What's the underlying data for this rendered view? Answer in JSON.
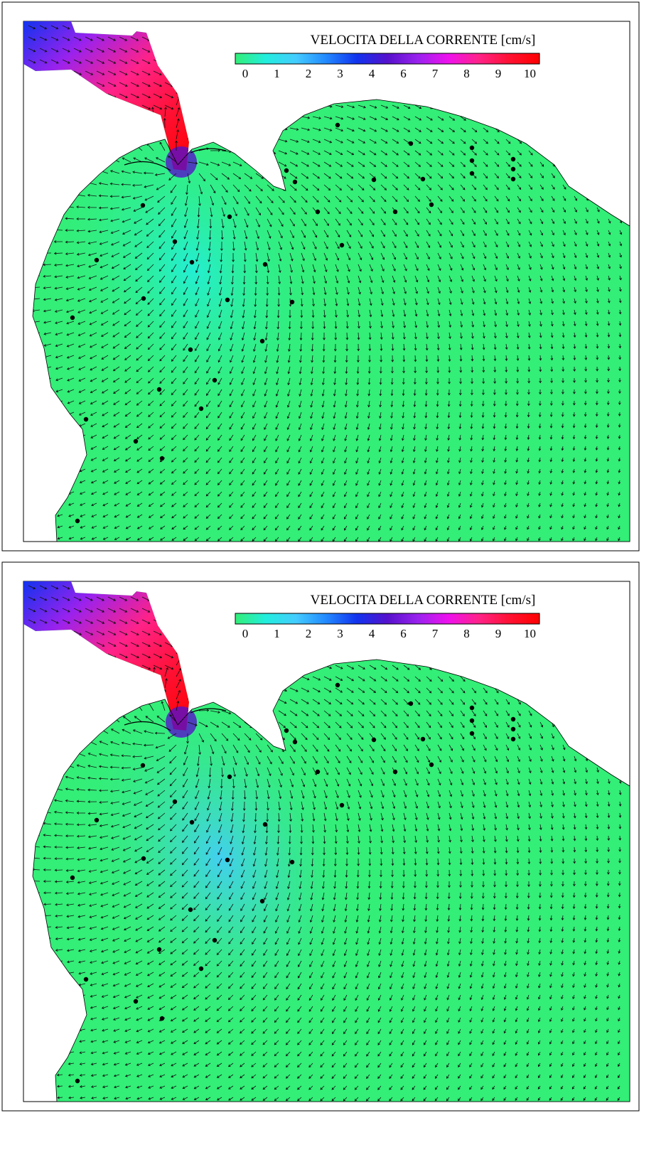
{
  "panels": [
    {
      "colorbar": {
        "title": "VELOCITA DELLA CORRENTE [cm/s]",
        "ticks": [
          0,
          1,
          2,
          3,
          4,
          6,
          7,
          8,
          9,
          10
        ],
        "colors": [
          "#33ee77",
          "#22eedd",
          "#44ccff",
          "#2288ff",
          "#1133ee",
          "#5511cc",
          "#9922ee",
          "#ee11ee",
          "#ff2288",
          "#ff1133",
          "#ff0000"
        ]
      }
    },
    {
      "colorbar": {
        "title": "VELOCITA DELLA CORRENTE [cm/s]",
        "ticks": [
          0,
          1,
          2,
          3,
          4,
          6,
          7,
          8,
          9,
          10
        ],
        "colors": [
          "#33ee77",
          "#22eedd",
          "#44ccff",
          "#2288ff",
          "#1133ee",
          "#5511cc",
          "#9922ee",
          "#ee11ee",
          "#ff2288",
          "#ff1133",
          "#ff0000"
        ]
      }
    }
  ]
}
